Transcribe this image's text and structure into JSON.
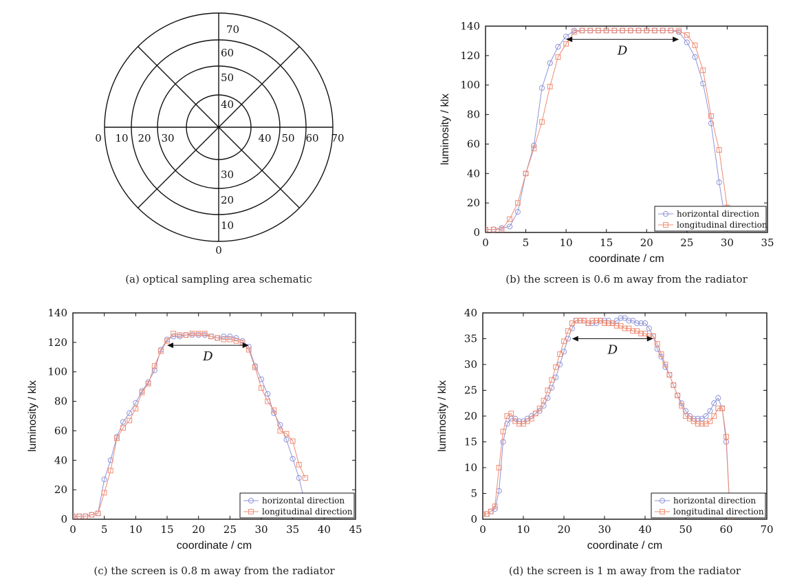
{
  "panel_a": {
    "caption": "(a) optical sampling area schematic",
    "labels_left": [
      "0",
      "10",
      "20",
      "30"
    ],
    "labels_right": [
      "40",
      "50",
      "60",
      "70"
    ],
    "labels_top": [
      "40",
      "50",
      "60",
      "70"
    ],
    "labels_bottom": [
      "30",
      "20",
      "10",
      "0"
    ]
  },
  "legend": {
    "h": "horizontal direction",
    "l": "longitudinal direction"
  },
  "colors": {
    "horizontal": "#8f93d8",
    "longitudinal": "#f08a70"
  },
  "chart_data": [
    {
      "type": "line",
      "caption": "(b) the screen is 0.6 m away from the radiator",
      "xlabel": "coordinate / cm",
      "ylabel": "luminosity / klx",
      "xlim": [
        0,
        35
      ],
      "ylim": [
        0,
        140
      ],
      "xticks": [
        0,
        5,
        10,
        15,
        20,
        25,
        30,
        35
      ],
      "yticks": [
        0,
        20,
        40,
        60,
        80,
        100,
        120,
        140
      ],
      "annotation": "D",
      "arrow_x": [
        10,
        24
      ],
      "arrow_y": 131,
      "series": [
        {
          "name": "horizontal direction",
          "x": [
            0,
            1,
            2,
            3,
            4,
            5,
            6,
            7,
            8,
            9,
            10,
            11,
            12,
            13,
            14,
            15,
            16,
            17,
            18,
            19,
            20,
            21,
            22,
            23,
            24,
            25,
            26,
            27,
            28,
            29,
            30
          ],
          "y": [
            2,
            2,
            3,
            4,
            14,
            40,
            59,
            98,
            115,
            126,
            133,
            137,
            137,
            137,
            137,
            137,
            137,
            137,
            137,
            137,
            137,
            137,
            137,
            137,
            136,
            129,
            119,
            101,
            74,
            34,
            0
          ]
        },
        {
          "name": "longitudinal direction",
          "x": [
            0,
            1,
            2,
            3,
            4,
            5,
            6,
            7,
            8,
            9,
            10,
            11,
            12,
            13,
            14,
            15,
            16,
            17,
            18,
            19,
            20,
            21,
            22,
            23,
            24,
            25,
            26,
            27,
            28,
            29,
            30
          ],
          "y": [
            2,
            2,
            2,
            9,
            20,
            40,
            57,
            75,
            99,
            119,
            128,
            136,
            137,
            137,
            137,
            137,
            137,
            137,
            137,
            137,
            137,
            137,
            137,
            137,
            137,
            134,
            127,
            110,
            79,
            56,
            17
          ]
        }
      ]
    },
    {
      "type": "line",
      "caption": "(c) the screen is 0.8 m away from the radiator",
      "xlabel": "coordinate / cm",
      "ylabel": "luminosity / klx",
      "xlim": [
        0,
        45
      ],
      "ylim": [
        0,
        140
      ],
      "xticks": [
        0,
        5,
        10,
        15,
        20,
        25,
        30,
        35,
        40,
        45
      ],
      "yticks": [
        0,
        20,
        40,
        60,
        80,
        100,
        120,
        140
      ],
      "annotation": "D",
      "arrow_x": [
        15,
        28
      ],
      "arrow_y": 118,
      "series": [
        {
          "name": "horizontal direction",
          "x": [
            0,
            1,
            2,
            3,
            4,
            5,
            6,
            7,
            8,
            9,
            10,
            11,
            12,
            13,
            14,
            15,
            16,
            17,
            18,
            19,
            20,
            21,
            22,
            23,
            24,
            25,
            26,
            27,
            28,
            29,
            30,
            31,
            32,
            33,
            34,
            35,
            36,
            37
          ],
          "y": [
            2,
            2,
            2,
            3,
            4,
            27,
            40,
            56,
            66,
            72,
            79,
            87,
            93,
            101,
            115,
            122,
            124,
            124,
            125,
            125,
            125,
            125,
            124,
            123,
            124,
            124,
            123,
            121,
            117,
            104,
            95,
            85,
            72,
            64,
            54,
            41,
            28,
            10
          ]
        },
        {
          "name": "longitudinal direction",
          "x": [
            0,
            1,
            2,
            3,
            4,
            5,
            6,
            7,
            8,
            9,
            10,
            11,
            12,
            13,
            14,
            15,
            16,
            17,
            18,
            19,
            20,
            21,
            22,
            23,
            24,
            25,
            26,
            27,
            28,
            29,
            30,
            31,
            32,
            33,
            34,
            35,
            36,
            37
          ],
          "y": [
            2,
            2,
            2,
            3,
            4,
            18,
            33,
            55,
            62,
            67,
            75,
            86,
            92,
            104,
            114,
            121,
            126,
            125,
            125,
            126,
            126,
            126,
            124,
            123,
            122,
            122,
            121,
            120,
            115,
            103,
            89,
            80,
            74,
            60,
            58,
            53,
            37,
            28
          ]
        }
      ]
    },
    {
      "type": "line",
      "caption": "(d) the screen is 1 m away from the radiator",
      "xlabel": "coordinate / cm",
      "ylabel": "luminosity / klx",
      "xlim": [
        0,
        70
      ],
      "ylim": [
        0,
        40
      ],
      "xticks": [
        0,
        10,
        20,
        30,
        40,
        50,
        60,
        70
      ],
      "yticks": [
        0,
        5,
        10,
        15,
        20,
        25,
        30,
        35,
        40
      ],
      "annotation": "D",
      "arrow_x": [
        22,
        42
      ],
      "arrow_y": 35,
      "series": [
        {
          "name": "horizontal direction",
          "x": [
            0,
            1,
            2,
            3,
            4,
            5,
            6,
            7,
            8,
            9,
            10,
            11,
            12,
            13,
            14,
            15,
            16,
            17,
            18,
            19,
            20,
            21,
            22,
            23,
            24,
            25,
            26,
            27,
            28,
            29,
            30,
            31,
            32,
            33,
            34,
            35,
            36,
            37,
            38,
            39,
            40,
            41,
            42,
            43,
            44,
            45,
            46,
            47,
            48,
            49,
            50,
            51,
            52,
            53,
            54,
            55,
            56,
            57,
            58,
            59,
            60,
            61
          ],
          "y": [
            1,
            1,
            1.5,
            2,
            5.5,
            15,
            18.5,
            19.5,
            19.5,
            19,
            19,
            19.5,
            20,
            20.5,
            21,
            22,
            23.5,
            25.5,
            27.5,
            30,
            32.5,
            35,
            37,
            38.5,
            38.5,
            38.5,
            38,
            38,
            38,
            38.5,
            38.5,
            38.5,
            38,
            38.5,
            39,
            39,
            38.5,
            38.5,
            38,
            38,
            38,
            37,
            35.5,
            33,
            31.5,
            29.5,
            28,
            26,
            24,
            22.5,
            21,
            20,
            19.5,
            19.5,
            19.5,
            20,
            21,
            22.5,
            23.5,
            21.5,
            15,
            0
          ]
        },
        {
          "name": "longitudinal direction",
          "x": [
            0,
            1,
            2,
            3,
            4,
            5,
            6,
            7,
            8,
            9,
            10,
            11,
            12,
            13,
            14,
            15,
            16,
            17,
            18,
            19,
            20,
            21,
            22,
            23,
            24,
            25,
            26,
            27,
            28,
            29,
            30,
            31,
            32,
            33,
            34,
            35,
            36,
            37,
            38,
            39,
            40,
            41,
            42,
            43,
            44,
            45,
            46,
            47,
            48,
            49,
            50,
            51,
            52,
            53,
            54,
            55,
            56,
            57,
            58,
            59,
            60,
            61
          ],
          "y": [
            1,
            1,
            1.5,
            2.5,
            10,
            17,
            20,
            20.5,
            19,
            18.5,
            18.5,
            19,
            19.5,
            20.5,
            21.5,
            23,
            25,
            27,
            29.5,
            32,
            34.5,
            36.5,
            38,
            38.5,
            38.5,
            38.5,
            38,
            38.5,
            38.5,
            38.5,
            38,
            38,
            38,
            37.5,
            37.5,
            37,
            37,
            36.5,
            36.5,
            36,
            36,
            35.5,
            35.5,
            34,
            32,
            30,
            28,
            26,
            24,
            22,
            20,
            19.5,
            19,
            18.5,
            18.5,
            18.5,
            19,
            20,
            21.5,
            21.5,
            16,
            0
          ]
        }
      ]
    }
  ]
}
